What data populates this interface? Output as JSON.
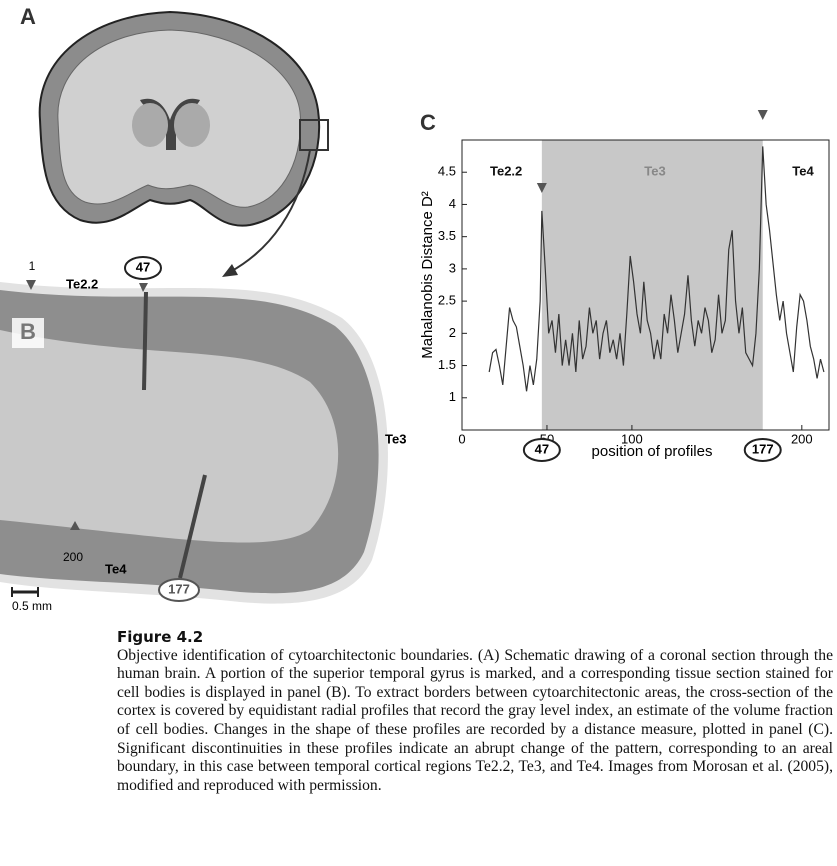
{
  "panels": {
    "a": "A",
    "b": "B",
    "c": "C"
  },
  "panel_b": {
    "profile_start": "1",
    "area_1": "Te2.2",
    "profile_1": "47",
    "area_2": "Te3",
    "profile_end": "200",
    "area_3": "Te4",
    "profile_2": "177",
    "scale": "0.5 mm"
  },
  "chart_data": {
    "type": "line",
    "ylabel": "Mahalanobis Distance D²",
    "xlabel": "position of profiles",
    "regions": [
      "Te2.2",
      "Te3",
      "Te4"
    ],
    "markers": [
      47,
      177
    ],
    "shade_color": "#c8c8c8",
    "xlim": [
      0,
      216
    ],
    "ylim": [
      0.5,
      5
    ],
    "xticks": [
      0,
      50,
      100,
      200
    ],
    "yticks": [
      1,
      1.5,
      2,
      2.5,
      3,
      3.5,
      4,
      4.5
    ],
    "x": [
      16,
      18,
      20,
      22,
      24,
      26,
      28,
      30,
      32,
      34,
      36,
      38,
      40,
      42,
      44,
      46,
      47,
      49,
      51,
      53,
      55,
      57,
      59,
      61,
      63,
      65,
      67,
      69,
      71,
      73,
      75,
      77,
      79,
      81,
      83,
      85,
      87,
      89,
      91,
      93,
      95,
      97,
      99,
      101,
      103,
      105,
      107,
      109,
      111,
      113,
      115,
      117,
      119,
      121,
      123,
      125,
      127,
      129,
      131,
      133,
      135,
      137,
      139,
      141,
      143,
      145,
      147,
      149,
      151,
      153,
      155,
      157,
      159,
      161,
      163,
      165,
      167,
      169,
      171,
      173,
      175,
      177,
      179,
      181,
      183,
      185,
      187,
      189,
      191,
      193,
      195,
      197,
      199,
      201,
      203,
      205,
      207,
      209,
      211,
      213
    ],
    "series": [
      {
        "name": "D2",
        "color": "#333333",
        "values": [
          1.4,
          1.7,
          1.75,
          1.5,
          1.2,
          1.8,
          2.4,
          2.2,
          2.1,
          1.8,
          1.5,
          1.1,
          1.5,
          1.2,
          1.6,
          2.5,
          3.9,
          3.0,
          2.0,
          2.2,
          1.7,
          2.3,
          1.5,
          1.9,
          1.5,
          2.0,
          1.4,
          2.2,
          1.6,
          1.8,
          2.4,
          2.0,
          2.2,
          1.6,
          2.0,
          2.2,
          1.7,
          1.9,
          1.6,
          2.0,
          1.5,
          2.3,
          3.2,
          2.8,
          2.3,
          2.0,
          2.8,
          2.2,
          2.0,
          1.6,
          1.9,
          1.6,
          2.3,
          2.0,
          2.6,
          2.2,
          1.7,
          2.0,
          2.3,
          2.9,
          2.2,
          1.8,
          2.2,
          2.0,
          2.4,
          2.2,
          1.7,
          1.9,
          2.6,
          2.0,
          2.2,
          3.3,
          3.6,
          2.5,
          2.0,
          2.4,
          1.7,
          1.6,
          1.5,
          2.0,
          3.0,
          4.9,
          4.0,
          3.6,
          3.1,
          2.6,
          2.2,
          2.5,
          2.0,
          1.7,
          1.4,
          2.1,
          2.6,
          2.5,
          2.2,
          1.8,
          1.6,
          1.3,
          1.6,
          1.4
        ]
      }
    ]
  },
  "caption": {
    "title": "Figure 4.2",
    "text": "Objective identification of cytoarchitectonic boundaries. (A) Schematic drawing of a coronal section through the human brain. A portion of the superior temporal gyrus is marked, and a corresponding tissue section stained for cell bodies is displayed in panel (B). To extract borders between cytoarchitectonic areas, the cross-section of the cortex is covered by equidistant radial profiles that record the gray level index, an estimate of the volume fraction of cell bodies. Changes in the shape of these profiles are recorded by a distance measure, plotted in panel (C). Significant discontinuities in these profiles indicate an abrupt change of the pattern, corresponding to an areal boundary, in this case between temporal cortical regions Te2.2, Te3, and Te4. Images from Morosan et al. (2005), modified and reproduced with permission."
  }
}
